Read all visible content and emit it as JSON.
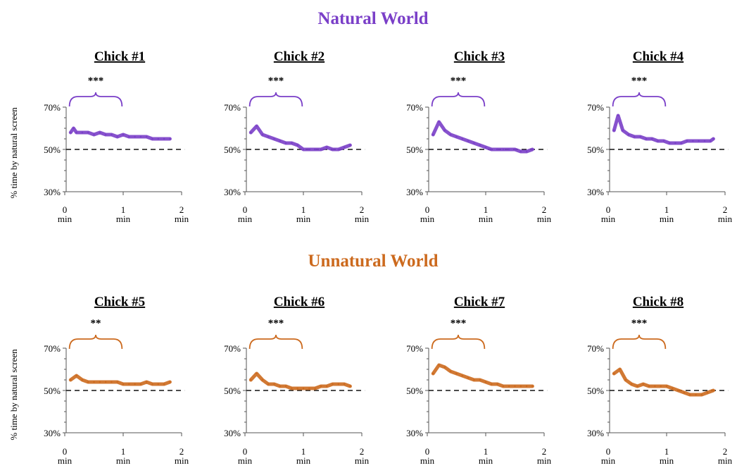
{
  "chart_data": {
    "type": "line",
    "y_unit": "%",
    "ylim": [
      30,
      70
    ],
    "xlim": [
      0,
      2
    ],
    "yticks": [
      "70%",
      "50%",
      "30%"
    ],
    "xticks": [
      {
        "value": 0,
        "label": "0",
        "unit": "min"
      },
      {
        "value": 1,
        "label": "1",
        "unit": "min"
      },
      {
        "value": 2,
        "label": "2",
        "unit": "min"
      }
    ],
    "reference_line": 50,
    "ylabel": "% time by natural screen",
    "groups": [
      {
        "title": "Natural World",
        "color": "#7a3fc8",
        "panels": [
          {
            "title": "Chick #1",
            "significance": "***",
            "x": [
              0.1,
              0.15,
              0.2,
              0.3,
              0.4,
              0.5,
              0.6,
              0.7,
              0.8,
              0.9,
              1.0,
              1.1,
              1.2,
              1.3,
              1.4,
              1.5,
              1.6,
              1.7,
              1.8
            ],
            "y": [
              58,
              60,
              58,
              58,
              58,
              57,
              58,
              57,
              57,
              56,
              57,
              56,
              56,
              56,
              56,
              55,
              55,
              55,
              55
            ]
          },
          {
            "title": "Chick #2",
            "significance": "***",
            "x": [
              0.1,
              0.2,
              0.3,
              0.4,
              0.5,
              0.6,
              0.7,
              0.8,
              0.9,
              1.0,
              1.1,
              1.2,
              1.3,
              1.4,
              1.5,
              1.6,
              1.7,
              1.8
            ],
            "y": [
              58,
              61,
              57,
              56,
              55,
              54,
              53,
              53,
              52,
              50,
              50,
              50,
              50,
              51,
              50,
              50,
              51,
              52
            ]
          },
          {
            "title": "Chick #3",
            "significance": "***",
            "x": [
              0.1,
              0.2,
              0.3,
              0.4,
              0.5,
              0.6,
              0.7,
              0.8,
              0.9,
              1.0,
              1.1,
              1.2,
              1.3,
              1.4,
              1.5,
              1.6,
              1.7,
              1.8
            ],
            "y": [
              57,
              63,
              59,
              57,
              56,
              55,
              54,
              53,
              52,
              51,
              50,
              50,
              50,
              50,
              50,
              49,
              49,
              50
            ]
          },
          {
            "title": "Chick #4",
            "significance": "***",
            "x": [
              0.1,
              0.17,
              0.25,
              0.35,
              0.45,
              0.55,
              0.65,
              0.75,
              0.85,
              0.95,
              1.05,
              1.15,
              1.25,
              1.35,
              1.45,
              1.55,
              1.65,
              1.75,
              1.8
            ],
            "y": [
              59,
              66,
              59,
              57,
              56,
              56,
              55,
              55,
              54,
              54,
              53,
              53,
              53,
              54,
              54,
              54,
              54,
              54,
              55
            ]
          }
        ]
      },
      {
        "title": "Unnatural World",
        "color": "#cc6a1e",
        "panels": [
          {
            "title": "Chick #5",
            "significance": "**",
            "x": [
              0.1,
              0.2,
              0.3,
              0.4,
              0.5,
              0.6,
              0.7,
              0.8,
              0.9,
              1.0,
              1.1,
              1.2,
              1.3,
              1.4,
              1.5,
              1.6,
              1.7,
              1.8
            ],
            "y": [
              55,
              57,
              55,
              54,
              54,
              54,
              54,
              54,
              54,
              53,
              53,
              53,
              53,
              54,
              53,
              53,
              53,
              54
            ]
          },
          {
            "title": "Chick #6",
            "significance": "***",
            "x": [
              0.1,
              0.2,
              0.3,
              0.4,
              0.5,
              0.6,
              0.7,
              0.8,
              0.9,
              1.0,
              1.1,
              1.2,
              1.3,
              1.4,
              1.5,
              1.6,
              1.7,
              1.8
            ],
            "y": [
              55,
              58,
              55,
              53,
              53,
              52,
              52,
              51,
              51,
              51,
              51,
              51,
              52,
              52,
              53,
              53,
              53,
              52
            ]
          },
          {
            "title": "Chick #7",
            "significance": "***",
            "x": [
              0.1,
              0.2,
              0.3,
              0.4,
              0.5,
              0.6,
              0.7,
              0.8,
              0.9,
              1.0,
              1.1,
              1.2,
              1.3,
              1.4,
              1.5,
              1.6,
              1.7,
              1.8
            ],
            "y": [
              58,
              62,
              61,
              59,
              58,
              57,
              56,
              55,
              55,
              54,
              53,
              53,
              52,
              52,
              52,
              52,
              52,
              52
            ]
          },
          {
            "title": "Chick #8",
            "significance": "***",
            "x": [
              0.1,
              0.2,
              0.3,
              0.4,
              0.5,
              0.6,
              0.7,
              0.8,
              0.9,
              1.0,
              1.1,
              1.2,
              1.3,
              1.4,
              1.5,
              1.6,
              1.7,
              1.8
            ],
            "y": [
              58,
              60,
              55,
              53,
              52,
              53,
              52,
              52,
              52,
              52,
              51,
              50,
              49,
              48,
              48,
              48,
              49,
              50
            ]
          }
        ]
      }
    ]
  }
}
